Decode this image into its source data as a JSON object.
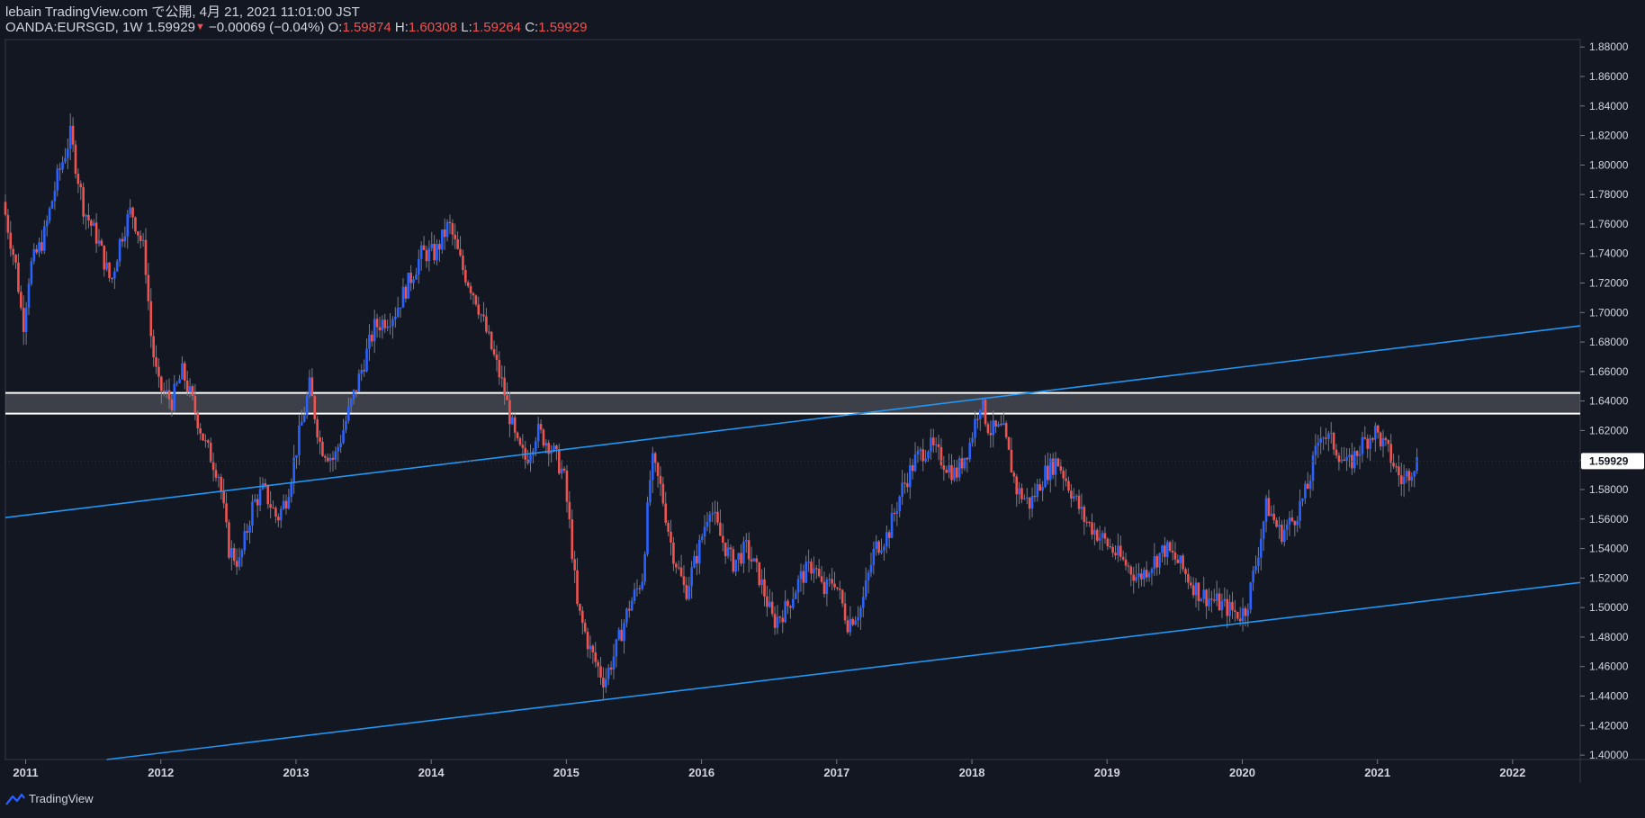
{
  "header": {
    "publish_line": "lebain TradingView.com で公開, 4月 21, 2021 11:01:00 JST",
    "symbol": "OANDA:EURSGD, 1W",
    "last": "1.59929",
    "change": "−0.00069 (−0.04%)",
    "o_label": "O:",
    "o_value": "1.59874",
    "h_label": "H:",
    "h_value": "1.60308",
    "l_label": "L:",
    "l_value": "1.59264",
    "c_label": "C:",
    "c_value": "1.59929"
  },
  "footer": {
    "brand": "TradingView"
  },
  "colors": {
    "background": "#131722",
    "up": "#2962ff",
    "down": "#ef5350",
    "trendline": "#2196f3",
    "zone": "#ffffff"
  },
  "chart_data": {
    "type": "candlestick",
    "symbol": "OANDA:EURSGD",
    "interval": "1W",
    "xlim": [
      2010.85,
      2022.5
    ],
    "ylim": [
      1.397,
      1.885
    ],
    "x_ticks": [
      2011,
      2012,
      2013,
      2014,
      2015,
      2016,
      2017,
      2018,
      2019,
      2020,
      2021,
      2022
    ],
    "x_tick_labels": [
      "2011",
      "2012",
      "2013",
      "2014",
      "2015",
      "2016",
      "2017",
      "2018",
      "2019",
      "2020",
      "2021",
      "2022"
    ],
    "y_ticks": [
      1.4,
      1.42,
      1.44,
      1.46,
      1.48,
      1.5,
      1.52,
      1.54,
      1.56,
      1.58,
      1.6,
      1.62,
      1.64,
      1.66,
      1.68,
      1.7,
      1.72,
      1.74,
      1.76,
      1.78,
      1.8,
      1.82,
      1.84,
      1.86,
      1.88
    ],
    "y_tick_labels": [
      "1.40000",
      "1.42000",
      "1.44000",
      "1.46000",
      "1.48000",
      "1.50000",
      "1.52000",
      "1.54000",
      "1.56000",
      "1.58000",
      "1.60000",
      "1.62000",
      "1.64000",
      "1.66000",
      "1.68000",
      "1.70000",
      "1.72000",
      "1.74000",
      "1.76000",
      "1.78000",
      "1.80000",
      "1.82000",
      "1.84000",
      "1.86000",
      "1.88000"
    ],
    "last_price": 1.59929,
    "last_price_label": "1.59929",
    "grid": false,
    "price_path": [
      [
        2010.85,
        1.775
      ],
      [
        2010.95,
        1.73
      ],
      [
        2011.0,
        1.69
      ],
      [
        2011.05,
        1.73
      ],
      [
        2011.15,
        1.75
      ],
      [
        2011.25,
        1.79
      ],
      [
        2011.35,
        1.82
      ],
      [
        2011.45,
        1.77
      ],
      [
        2011.55,
        1.75
      ],
      [
        2011.65,
        1.72
      ],
      [
        2011.72,
        1.75
      ],
      [
        2011.8,
        1.77
      ],
      [
        2011.9,
        1.74
      ],
      [
        2011.95,
        1.68
      ],
      [
        2012.0,
        1.65
      ],
      [
        2012.1,
        1.64
      ],
      [
        2012.18,
        1.66
      ],
      [
        2012.25,
        1.64
      ],
      [
        2012.35,
        1.61
      ],
      [
        2012.45,
        1.59
      ],
      [
        2012.52,
        1.54
      ],
      [
        2012.6,
        1.53
      ],
      [
        2012.7,
        1.57
      ],
      [
        2012.78,
        1.58
      ],
      [
        2012.88,
        1.56
      ],
      [
        2012.95,
        1.575
      ],
      [
        2013.05,
        1.62
      ],
      [
        2013.12,
        1.65
      ],
      [
        2013.2,
        1.61
      ],
      [
        2013.3,
        1.6
      ],
      [
        2013.4,
        1.63
      ],
      [
        2013.5,
        1.66
      ],
      [
        2013.6,
        1.69
      ],
      [
        2013.75,
        1.7
      ],
      [
        2013.85,
        1.72
      ],
      [
        2013.95,
        1.74
      ],
      [
        2014.05,
        1.74
      ],
      [
        2014.15,
        1.76
      ],
      [
        2014.25,
        1.73
      ],
      [
        2014.35,
        1.71
      ],
      [
        2014.45,
        1.68
      ],
      [
        2014.55,
        1.65
      ],
      [
        2014.65,
        1.61
      ],
      [
        2014.72,
        1.6
      ],
      [
        2014.8,
        1.62
      ],
      [
        2014.9,
        1.61
      ],
      [
        2015.0,
        1.59
      ],
      [
        2015.05,
        1.55
      ],
      [
        2015.1,
        1.5
      ],
      [
        2015.2,
        1.47
      ],
      [
        2015.3,
        1.45
      ],
      [
        2015.38,
        1.47
      ],
      [
        2015.48,
        1.5
      ],
      [
        2015.58,
        1.52
      ],
      [
        2015.65,
        1.6
      ],
      [
        2015.72,
        1.58
      ],
      [
        2015.8,
        1.54
      ],
      [
        2015.9,
        1.51
      ],
      [
        2016.0,
        1.54
      ],
      [
        2016.08,
        1.57
      ],
      [
        2016.15,
        1.55
      ],
      [
        2016.25,
        1.53
      ],
      [
        2016.35,
        1.54
      ],
      [
        2016.45,
        1.52
      ],
      [
        2016.55,
        1.49
      ],
      [
        2016.65,
        1.5
      ],
      [
        2016.75,
        1.52
      ],
      [
        2016.85,
        1.53
      ],
      [
        2016.92,
        1.51
      ],
      [
        2017.0,
        1.52
      ],
      [
        2017.1,
        1.49
      ],
      [
        2017.2,
        1.5
      ],
      [
        2017.3,
        1.54
      ],
      [
        2017.4,
        1.55
      ],
      [
        2017.5,
        1.58
      ],
      [
        2017.6,
        1.6
      ],
      [
        2017.7,
        1.61
      ],
      [
        2017.8,
        1.6
      ],
      [
        2017.9,
        1.59
      ],
      [
        2018.0,
        1.61
      ],
      [
        2018.08,
        1.64
      ],
      [
        2018.15,
        1.62
      ],
      [
        2018.25,
        1.62
      ],
      [
        2018.35,
        1.58
      ],
      [
        2018.45,
        1.57
      ],
      [
        2018.55,
        1.59
      ],
      [
        2018.65,
        1.6
      ],
      [
        2018.75,
        1.58
      ],
      [
        2018.85,
        1.56
      ],
      [
        2018.95,
        1.55
      ],
      [
        2019.05,
        1.54
      ],
      [
        2019.15,
        1.53
      ],
      [
        2019.25,
        1.52
      ],
      [
        2019.35,
        1.53
      ],
      [
        2019.45,
        1.54
      ],
      [
        2019.55,
        1.53
      ],
      [
        2019.62,
        1.52
      ],
      [
        2019.7,
        1.51
      ],
      [
        2019.8,
        1.505
      ],
      [
        2019.9,
        1.5
      ],
      [
        2020.0,
        1.495
      ],
      [
        2020.05,
        1.5
      ],
      [
        2020.12,
        1.53
      ],
      [
        2020.2,
        1.57
      ],
      [
        2020.3,
        1.55
      ],
      [
        2020.4,
        1.56
      ],
      [
        2020.5,
        1.58
      ],
      [
        2020.6,
        1.62
      ],
      [
        2020.7,
        1.61
      ],
      [
        2020.8,
        1.595
      ],
      [
        2020.9,
        1.61
      ],
      [
        2021.0,
        1.62
      ],
      [
        2021.1,
        1.605
      ],
      [
        2021.2,
        1.585
      ],
      [
        2021.3,
        1.599
      ]
    ],
    "horizontal_zone": {
      "top": 1.6455,
      "bottom": 1.6315
    },
    "trendlines": [
      {
        "name": "upper-channel-line",
        "points": [
          [
            2010.85,
            1.561
          ],
          [
            2022.5,
            1.691
          ]
        ]
      },
      {
        "name": "lower-channel-line",
        "points": [
          [
            2011.6,
            1.397
          ],
          [
            2022.5,
            1.517
          ]
        ]
      }
    ]
  }
}
